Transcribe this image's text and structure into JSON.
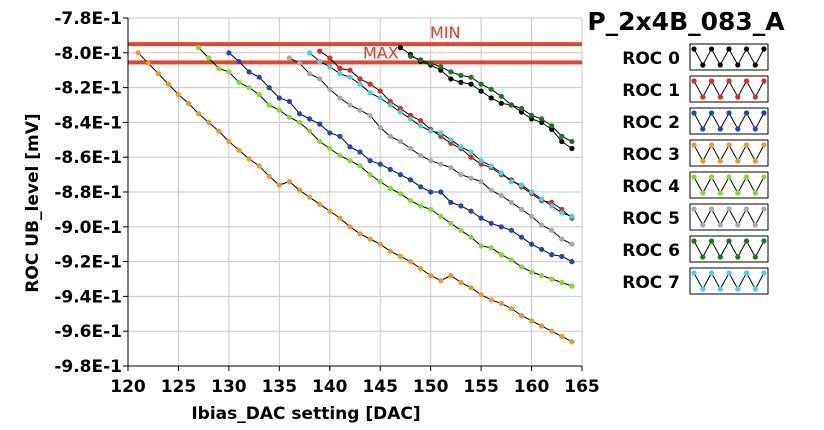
{
  "chart_data": {
    "type": "line",
    "title": "P_2x4B_083_A",
    "xlabel": "Ibias_DAC setting [DAC]",
    "ylabel": "ROC UB_level [mV]",
    "xlim": [
      120,
      165
    ],
    "ylim": [
      -0.98,
      -0.78
    ],
    "xticks": [
      "120",
      "125",
      "130",
      "135",
      "140",
      "145",
      "150",
      "155",
      "160",
      "165"
    ],
    "yticks": [
      "-7.8E-1",
      "-8.0E-1",
      "-8.2E-1",
      "-8.4E-1",
      "-8.6E-1",
      "-8.8E-1",
      "-9.0E-1",
      "-9.2E-1",
      "-9.4E-1",
      "-9.6E-1",
      "-9.8E-1"
    ],
    "grid": true,
    "legend_position": "right",
    "reference_lines": [
      {
        "label": "MIN",
        "y": -0.795,
        "color": "#e8432e"
      },
      {
        "label": "MAX",
        "y": -0.8055,
        "color": "#e8432e"
      }
    ],
    "series": [
      {
        "name": "ROC 0",
        "color": "#000000",
        "x": [
          147,
          148,
          149,
          150,
          151,
          152,
          153,
          154,
          155,
          156,
          157,
          158,
          159,
          160,
          161,
          162,
          163,
          164
        ],
        "y": [
          -0.797,
          -0.801,
          -0.805,
          -0.807,
          -0.81,
          -0.815,
          -0.817,
          -0.818,
          -0.822,
          -0.826,
          -0.829,
          -0.83,
          -0.834,
          -0.838,
          -0.84,
          -0.844,
          -0.851,
          -0.855
        ]
      },
      {
        "name": "ROC 1",
        "color": "#e8261c",
        "x": [
          139,
          140,
          141,
          142,
          143,
          144,
          145,
          146,
          147,
          148,
          149,
          150,
          151,
          152,
          153,
          154,
          155,
          156,
          157,
          158,
          159,
          160,
          161,
          162,
          163,
          164
        ],
        "y": [
          -0.799,
          -0.803,
          -0.809,
          -0.81,
          -0.815,
          -0.818,
          -0.822,
          -0.828,
          -0.832,
          -0.836,
          -0.839,
          -0.844,
          -0.848,
          -0.852,
          -0.855,
          -0.86,
          -0.864,
          -0.866,
          -0.87,
          -0.873,
          -0.877,
          -0.881,
          -0.885,
          -0.886,
          -0.89,
          -0.895
        ]
      },
      {
        "name": "ROC 2",
        "color": "#1b47c2",
        "x": [
          130,
          131,
          132,
          133,
          134,
          135,
          136,
          137,
          138,
          139,
          140,
          141,
          142,
          143,
          144,
          145,
          146,
          147,
          148,
          149,
          150,
          151,
          152,
          153,
          154,
          155,
          156,
          157,
          158,
          159,
          160,
          161,
          162,
          163,
          164
        ],
        "y": [
          -0.8,
          -0.805,
          -0.811,
          -0.814,
          -0.82,
          -0.826,
          -0.828,
          -0.835,
          -0.838,
          -0.841,
          -0.846,
          -0.848,
          -0.854,
          -0.857,
          -0.862,
          -0.864,
          -0.867,
          -0.87,
          -0.873,
          -0.877,
          -0.88,
          -0.88,
          -0.886,
          -0.888,
          -0.891,
          -0.895,
          -0.898,
          -0.9,
          -0.902,
          -0.906,
          -0.91,
          -0.913,
          -0.916,
          -0.917,
          -0.92
        ]
      },
      {
        "name": "ROC 3",
        "color": "#ef9a1e",
        "x": [
          121,
          122,
          123,
          124,
          125,
          126,
          127,
          128,
          129,
          130,
          131,
          132,
          133,
          134,
          135,
          136,
          137,
          138,
          139,
          140,
          141,
          142,
          143,
          144,
          145,
          146,
          147,
          148,
          149,
          150,
          151,
          152,
          153,
          154,
          155,
          156,
          157,
          158,
          159,
          160,
          161,
          162,
          163,
          164
        ],
        "y": [
          -0.8,
          -0.806,
          -0.812,
          -0.818,
          -0.824,
          -0.829,
          -0.835,
          -0.84,
          -0.845,
          -0.851,
          -0.856,
          -0.861,
          -0.865,
          -0.871,
          -0.876,
          -0.874,
          -0.879,
          -0.883,
          -0.887,
          -0.891,
          -0.895,
          -0.9,
          -0.904,
          -0.907,
          -0.91,
          -0.914,
          -0.917,
          -0.92,
          -0.924,
          -0.928,
          -0.931,
          -0.928,
          -0.932,
          -0.935,
          -0.939,
          -0.942,
          -0.944,
          -0.947,
          -0.951,
          -0.954,
          -0.957,
          -0.96,
          -0.963,
          -0.966
        ]
      },
      {
        "name": "ROC 4",
        "color": "#7fe01e",
        "x": [
          127,
          128,
          129,
          130,
          131,
          132,
          133,
          134,
          135,
          136,
          137,
          138,
          139,
          140,
          141,
          142,
          143,
          144,
          145,
          146,
          147,
          148,
          149,
          150,
          151,
          152,
          153,
          154,
          155,
          156,
          157,
          158,
          159,
          160,
          161,
          162,
          163,
          164
        ],
        "y": [
          -0.797,
          -0.803,
          -0.809,
          -0.811,
          -0.817,
          -0.82,
          -0.824,
          -0.83,
          -0.833,
          -0.837,
          -0.84,
          -0.845,
          -0.851,
          -0.855,
          -0.859,
          -0.862,
          -0.865,
          -0.87,
          -0.874,
          -0.878,
          -0.881,
          -0.885,
          -0.888,
          -0.89,
          -0.894,
          -0.898,
          -0.902,
          -0.906,
          -0.911,
          -0.912,
          -0.916,
          -0.919,
          -0.923,
          -0.926,
          -0.928,
          -0.93,
          -0.932,
          -0.934
        ]
      },
      {
        "name": "ROC 5",
        "color": "#a9a9a9",
        "x": [
          136,
          137,
          138,
          139,
          140,
          141,
          142,
          143,
          144,
          145,
          146,
          147,
          148,
          149,
          150,
          151,
          152,
          153,
          154,
          155,
          156,
          157,
          158,
          159,
          160,
          161,
          162,
          163,
          164
        ],
        "y": [
          -0.803,
          -0.806,
          -0.812,
          -0.815,
          -0.821,
          -0.826,
          -0.83,
          -0.833,
          -0.836,
          -0.843,
          -0.848,
          -0.851,
          -0.855,
          -0.859,
          -0.862,
          -0.864,
          -0.866,
          -0.87,
          -0.872,
          -0.874,
          -0.879,
          -0.882,
          -0.886,
          -0.89,
          -0.894,
          -0.899,
          -0.902,
          -0.907,
          -0.91
        ]
      },
      {
        "name": "ROC 6",
        "color": "#167a1a",
        "x": [
          148,
          149,
          150,
          151,
          152,
          153,
          154,
          155,
          156,
          157,
          158,
          159,
          160,
          161,
          162,
          163,
          164
        ],
        "y": [
          -0.802,
          -0.804,
          -0.806,
          -0.808,
          -0.811,
          -0.813,
          -0.814,
          -0.818,
          -0.821,
          -0.825,
          -0.83,
          -0.832,
          -0.836,
          -0.838,
          -0.842,
          -0.848,
          -0.851
        ]
      },
      {
        "name": "ROC 7",
        "color": "#38d6e8",
        "x": [
          138,
          139,
          140,
          141,
          142,
          143,
          144,
          145,
          146,
          147,
          148,
          149,
          150,
          151,
          152,
          153,
          154,
          155,
          156,
          157,
          158,
          159,
          160,
          161,
          162,
          163,
          164
        ],
        "y": [
          -0.8,
          -0.805,
          -0.808,
          -0.812,
          -0.814,
          -0.818,
          -0.823,
          -0.826,
          -0.83,
          -0.834,
          -0.838,
          -0.842,
          -0.845,
          -0.846,
          -0.85,
          -0.854,
          -0.857,
          -0.862,
          -0.865,
          -0.869,
          -0.874,
          -0.876,
          -0.88,
          -0.884,
          -0.888,
          -0.892,
          -0.894
        ]
      }
    ]
  }
}
